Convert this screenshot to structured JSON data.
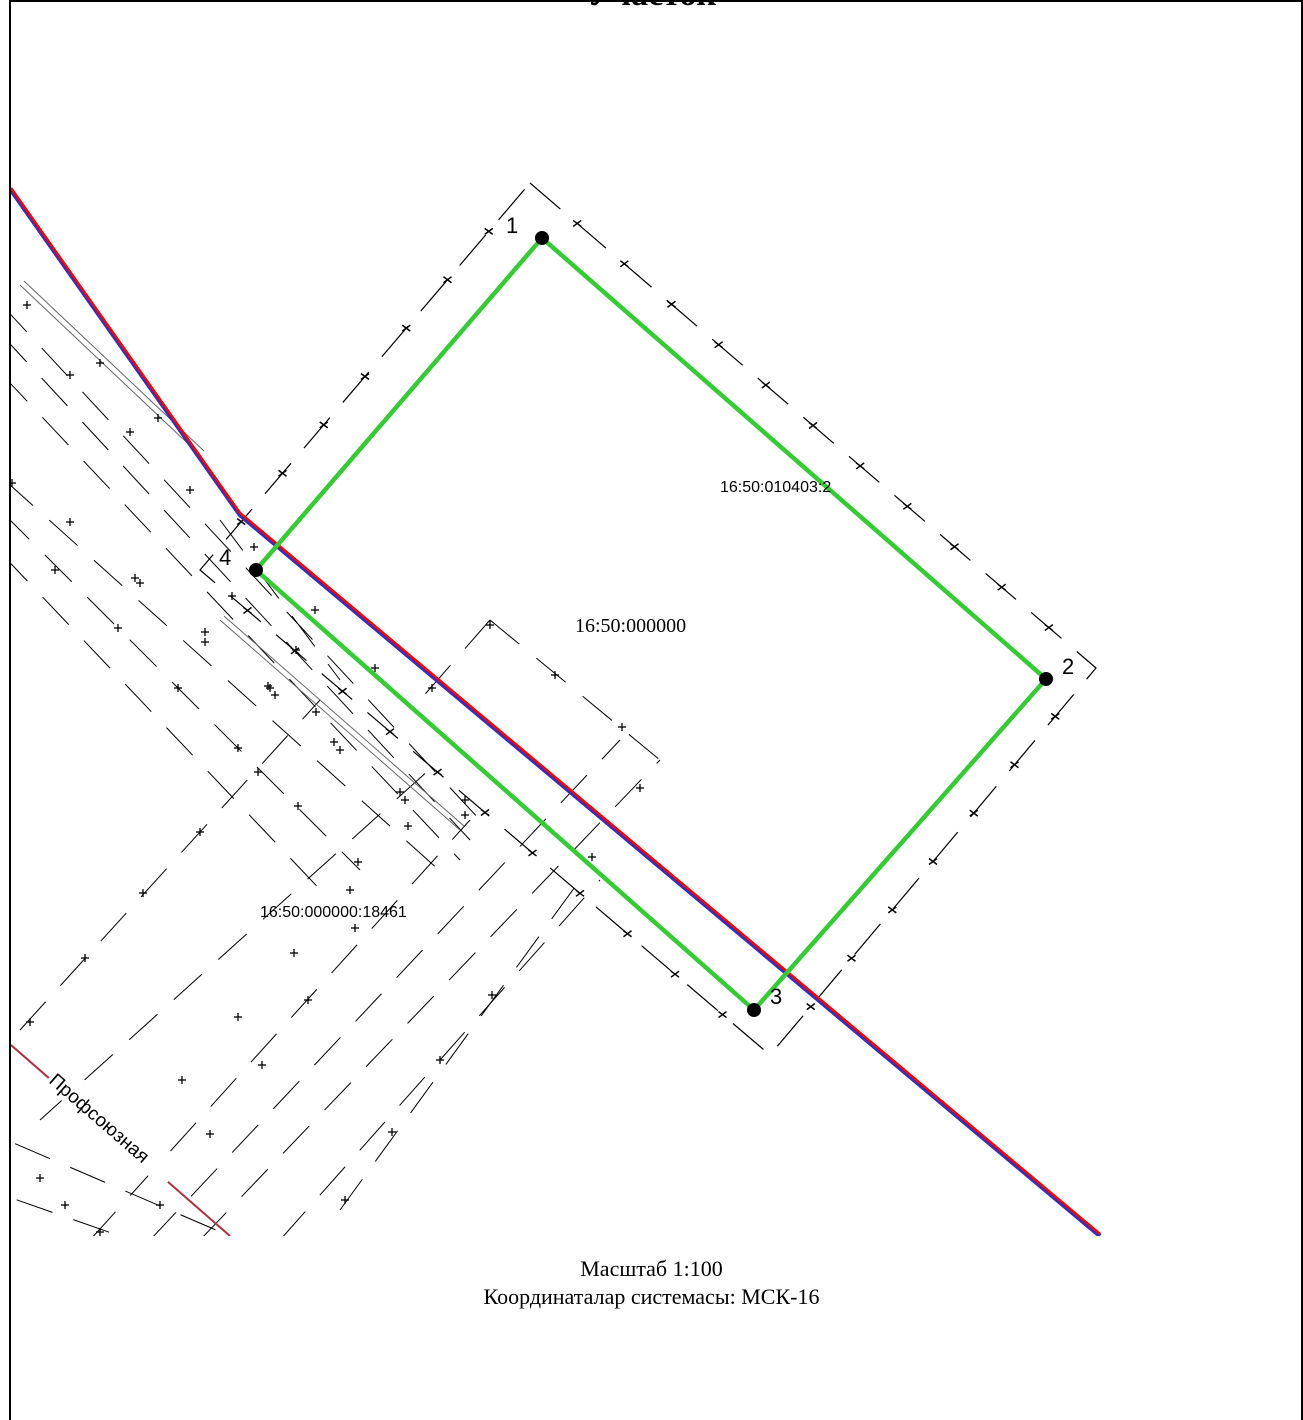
{
  "title": "Участок",
  "map": {
    "parcel_labels": {
      "main": "16:50:010403:2",
      "quarter": "16:50:000000",
      "road_parcel": "16:50:000000:18461"
    },
    "points": [
      {
        "label": "1"
      },
      {
        "label": "2"
      },
      {
        "label": "3"
      },
      {
        "label": "4"
      }
    ],
    "street_name": "Профсоюзная",
    "colors": {
      "parcel_boundary": "#33cc33",
      "red_line": "#ff0000",
      "red_line_shadow": "#3030c0",
      "street_line": "#b03040",
      "dashed": "#000000"
    }
  },
  "scale": "Масштаб 1:100",
  "crs": "Координаталар системасы: МСК-16"
}
